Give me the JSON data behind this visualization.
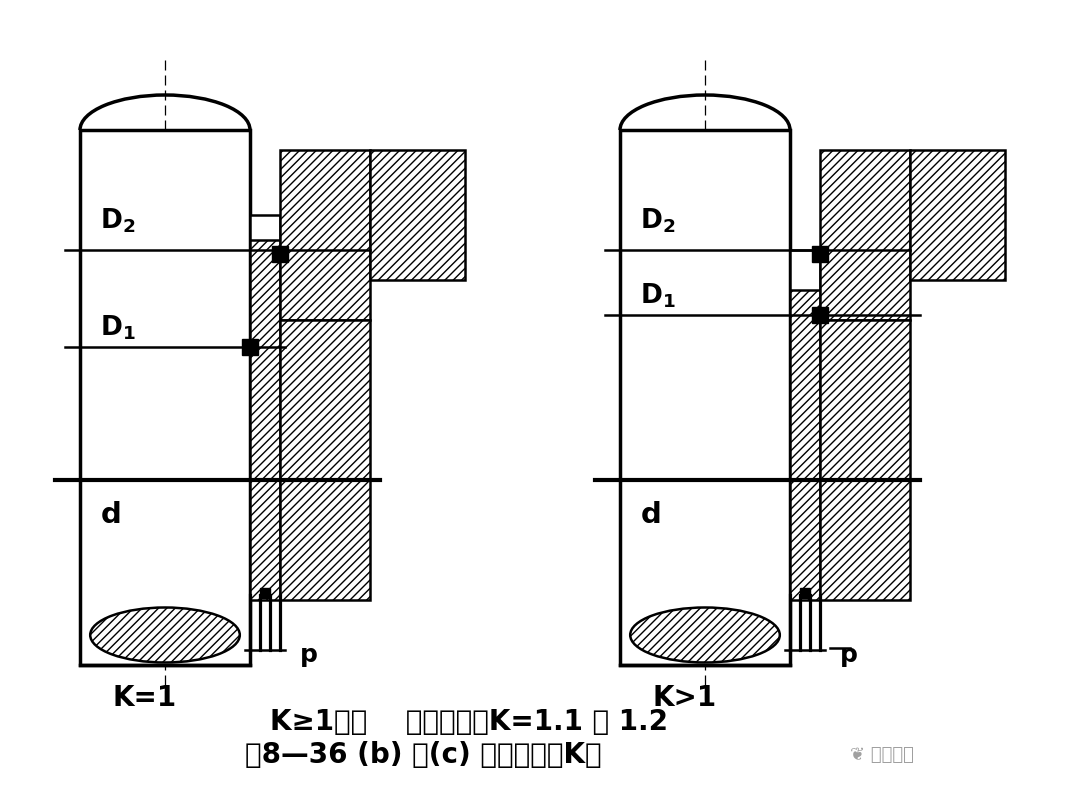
{
  "title_line1": "K≥1时：    非平衡型。K=1.1 ～ 1.2",
  "title_line2": "图8—36 (b) 、(c) 机械密封的K値",
  "label_K1": "K=1",
  "label_Kgt1": "K>1",
  "label_p": "p",
  "bg_color": "#ffffff",
  "line_color": "#000000"
}
